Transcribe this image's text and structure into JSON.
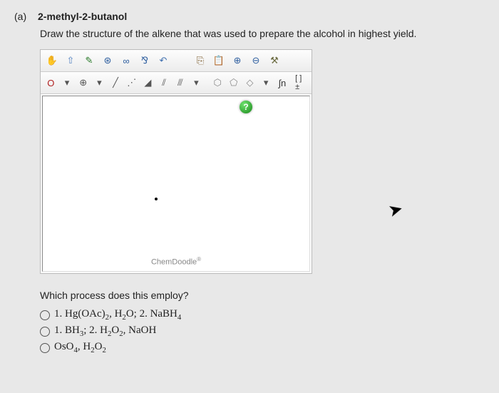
{
  "part": {
    "label": "(a)",
    "compound": "2-methyl-2-butanol"
  },
  "instruction": "Draw the structure of the alkene that was used to prepare the alcohol in highest yield.",
  "editor": {
    "toolbar_top": [
      {
        "name": "hand-icon",
        "glyph": "✋",
        "color": "#d89050"
      },
      {
        "name": "select-icon",
        "glyph": "⇧",
        "color": "#5080c0"
      },
      {
        "name": "eraser-icon",
        "glyph": "✎",
        "color": "#2a7a2a"
      },
      {
        "name": "center-icon",
        "glyph": "⊛",
        "color": "#3060a0"
      },
      {
        "name": "chain-icon",
        "glyph": "∞",
        "color": "#3060a0"
      },
      {
        "name": "chain2-icon",
        "glyph": "⅋",
        "color": "#3060a0"
      },
      {
        "name": "undo-icon",
        "glyph": "↶",
        "color": "#4070b0"
      },
      {
        "name": "spacer1",
        "glyph": " ",
        "color": "#000"
      },
      {
        "name": "copy-icon",
        "glyph": "⎘",
        "color": "#7a5a2a"
      },
      {
        "name": "paste-icon",
        "glyph": "📋",
        "color": "#7a5a2a"
      },
      {
        "name": "zoomin-icon",
        "glyph": "⊕",
        "color": "#3060a0"
      },
      {
        "name": "zoomout-icon",
        "glyph": "⊖",
        "color": "#3060a0"
      },
      {
        "name": "settings-icon",
        "glyph": "⚒",
        "color": "#6a6a40"
      }
    ],
    "toolbar_bottom_left": [
      {
        "name": "element-o",
        "glyph": "O",
        "color": "#b02020"
      },
      {
        "name": "drop1",
        "glyph": "▾",
        "color": "#555"
      },
      {
        "name": "add-atom",
        "glyph": "⊕",
        "color": "#555"
      },
      {
        "name": "drop2",
        "glyph": "▾",
        "color": "#555"
      },
      {
        "name": "single-bond",
        "glyph": "╱",
        "color": "#555"
      },
      {
        "name": "dashed-bond",
        "glyph": "⋰",
        "color": "#555"
      },
      {
        "name": "wedge-bond",
        "glyph": "◢",
        "color": "#555"
      },
      {
        "name": "double-bond",
        "glyph": "⫽",
        "color": "#555"
      },
      {
        "name": "triple-bond",
        "glyph": "⫻",
        "color": "#555"
      },
      {
        "name": "drop3",
        "glyph": "▾",
        "color": "#555"
      }
    ],
    "toolbar_bottom_right": [
      {
        "name": "hexagon-icon",
        "glyph": "⬡",
        "color": "#888"
      },
      {
        "name": "pentagon-icon",
        "glyph": "⬠",
        "color": "#888"
      },
      {
        "name": "square-icon",
        "glyph": "◇",
        "color": "#888"
      },
      {
        "name": "drop4",
        "glyph": "▾",
        "color": "#555"
      },
      {
        "name": "integral-n",
        "glyph": "∫n",
        "color": "#333"
      },
      {
        "name": "bracket-icon",
        "glyph": "[ ]±",
        "color": "#333"
      }
    ],
    "help": "?",
    "watermark": "ChemDoodle",
    "watermark_r": "®"
  },
  "question2": "Which process does this employ?",
  "options": [
    {
      "html": "1. Hg(OAc)<sub>2</sub>, H<sub>2</sub>O; 2. NaBH<sub>4</sub>"
    },
    {
      "html": "1. BH<sub>3</sub>; 2. H<sub>2</sub>O<sub>2</sub>, NaOH"
    },
    {
      "html": "OsO<sub>4</sub>, H<sub>2</sub>O<sub>2</sub>"
    }
  ],
  "colors": {
    "background": "#e8e8e8",
    "border": "#bbbbbb",
    "help_badge": "#1a881a"
  }
}
